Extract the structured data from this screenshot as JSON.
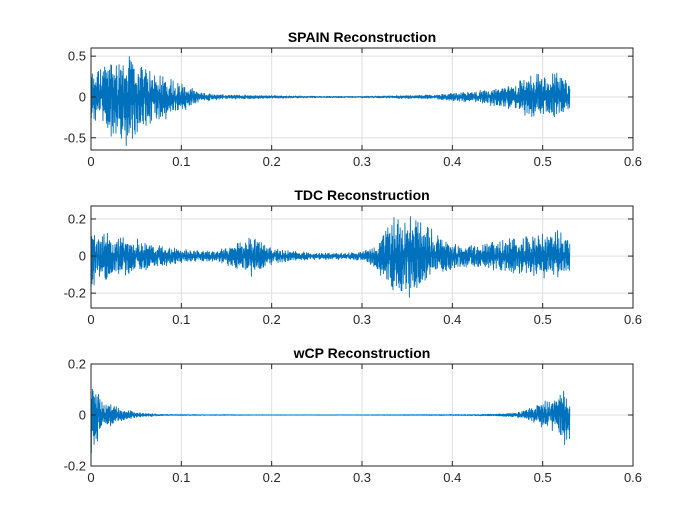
{
  "chart_data": [
    {
      "type": "line",
      "title": "SPAIN Reconstruction",
      "xlabel": "",
      "ylabel": "",
      "xlim": [
        0,
        0.6
      ],
      "ylim": [
        -0.65,
        0.6
      ],
      "x_ticks": [
        0,
        0.1,
        0.2,
        0.3,
        0.4,
        0.5,
        0.6
      ],
      "x_tick_labels": [
        "0",
        "0.1",
        "0.2",
        "0.3",
        "0.4",
        "0.5",
        "0.6"
      ],
      "y_ticks": [
        -0.5,
        0,
        0.5
      ],
      "y_tick_labels": [
        "-0.5",
        "0",
        "0.5"
      ],
      "grid": true,
      "color": "#0072BD",
      "series": [
        {
          "x_range": [
            0,
            0.53
          ],
          "envelope": {
            "x": [
              0,
              0.01,
              0.02,
              0.03,
              0.04,
              0.05,
              0.06,
              0.07,
              0.08,
              0.09,
              0.1,
              0.11,
              0.12,
              0.15,
              0.2,
              0.25,
              0.3,
              0.35,
              0.38,
              0.4,
              0.42,
              0.44,
              0.46,
              0.47,
              0.48,
              0.49,
              0.5,
              0.51,
              0.52,
              0.53
            ],
            "upper": [
              0.35,
              0.45,
              0.5,
              0.55,
              0.58,
              0.5,
              0.4,
              0.35,
              0.3,
              0.25,
              0.2,
              0.12,
              0.06,
              0.03,
              0.02,
              0.01,
              0.01,
              0.02,
              0.03,
              0.05,
              0.07,
              0.1,
              0.15,
              0.2,
              0.25,
              0.3,
              0.3,
              0.32,
              0.3,
              0.2
            ],
            "lower": [
              -0.3,
              -0.35,
              -0.5,
              -0.6,
              -0.65,
              -0.55,
              -0.45,
              -0.4,
              -0.3,
              -0.25,
              -0.2,
              -0.12,
              -0.06,
              -0.03,
              -0.02,
              -0.01,
              -0.01,
              -0.02,
              -0.03,
              -0.05,
              -0.07,
              -0.1,
              -0.15,
              -0.2,
              -0.25,
              -0.25,
              -0.28,
              -0.3,
              -0.25,
              -0.15
            ]
          }
        }
      ]
    },
    {
      "type": "line",
      "title": "TDC Reconstruction",
      "xlabel": "",
      "ylabel": "",
      "xlim": [
        0,
        0.6
      ],
      "ylim": [
        -0.28,
        0.27
      ],
      "x_ticks": [
        0,
        0.1,
        0.2,
        0.3,
        0.4,
        0.5,
        0.6
      ],
      "x_tick_labels": [
        "0",
        "0.1",
        "0.2",
        "0.3",
        "0.4",
        "0.5",
        "0.6"
      ],
      "y_ticks": [
        -0.2,
        0,
        0.2
      ],
      "y_tick_labels": [
        "-0.2",
        "0",
        "0.2"
      ],
      "grid": true,
      "color": "#0072BD",
      "series": [
        {
          "x_range": [
            0,
            0.53
          ],
          "envelope": {
            "x": [
              0,
              0.01,
              0.03,
              0.05,
              0.08,
              0.1,
              0.12,
              0.14,
              0.16,
              0.18,
              0.19,
              0.2,
              0.22,
              0.25,
              0.28,
              0.3,
              0.31,
              0.32,
              0.33,
              0.34,
              0.35,
              0.36,
              0.37,
              0.38,
              0.39,
              0.4,
              0.42,
              0.44,
              0.46,
              0.48,
              0.5,
              0.52,
              0.53
            ],
            "upper": [
              0.2,
              0.15,
              0.12,
              0.1,
              0.06,
              0.04,
              0.03,
              0.03,
              0.07,
              0.12,
              0.1,
              0.05,
              0.03,
              0.02,
              0.02,
              0.03,
              0.05,
              0.1,
              0.2,
              0.24,
              0.22,
              0.26,
              0.18,
              0.14,
              0.1,
              0.08,
              0.07,
              0.08,
              0.1,
              0.12,
              0.14,
              0.16,
              0.1
            ],
            "lower": [
              -0.22,
              -0.16,
              -0.12,
              -0.1,
              -0.06,
              -0.04,
              -0.03,
              -0.04,
              -0.08,
              -0.12,
              -0.1,
              -0.05,
              -0.03,
              -0.02,
              -0.02,
              -0.03,
              -0.05,
              -0.12,
              -0.2,
              -0.28,
              -0.25,
              -0.22,
              -0.16,
              -0.12,
              -0.1,
              -0.08,
              -0.07,
              -0.08,
              -0.1,
              -0.12,
              -0.13,
              -0.14,
              -0.08
            ]
          }
        }
      ]
    },
    {
      "type": "line",
      "title": "wCP Reconstruction",
      "xlabel": "",
      "ylabel": "",
      "xlim": [
        0,
        0.6
      ],
      "ylim": [
        -0.2,
        0.2
      ],
      "x_ticks": [
        0,
        0.1,
        0.2,
        0.3,
        0.4,
        0.5,
        0.6
      ],
      "x_tick_labels": [
        "0",
        "0.1",
        "0.2",
        "0.3",
        "0.4",
        "0.5",
        "0.6"
      ],
      "y_ticks": [
        -0.2,
        0,
        0.2
      ],
      "y_tick_labels": [
        "-0.2",
        "0",
        "0.2"
      ],
      "grid": true,
      "color": "#0072BD",
      "series": [
        {
          "x_range": [
            0,
            0.53
          ],
          "envelope": {
            "x": [
              0,
              0.005,
              0.01,
              0.02,
              0.03,
              0.04,
              0.05,
              0.06,
              0.07,
              0.08,
              0.1,
              0.2,
              0.3,
              0.4,
              0.45,
              0.47,
              0.48,
              0.49,
              0.5,
              0.51,
              0.52,
              0.525,
              0.53
            ],
            "upper": [
              0.19,
              0.12,
              0.08,
              0.05,
              0.03,
              0.02,
              0.012,
              0.008,
              0.005,
              0.003,
              0.002,
              0.001,
              0.001,
              0.002,
              0.004,
              0.01,
              0.02,
              0.035,
              0.05,
              0.07,
              0.1,
              0.12,
              0.08
            ],
            "lower": [
              -0.2,
              -0.15,
              -0.09,
              -0.05,
              -0.03,
              -0.02,
              -0.012,
              -0.008,
              -0.005,
              -0.003,
              -0.002,
              -0.001,
              -0.001,
              -0.002,
              -0.004,
              -0.01,
              -0.02,
              -0.035,
              -0.05,
              -0.08,
              -0.11,
              -0.14,
              -0.1
            ]
          }
        }
      ]
    }
  ]
}
